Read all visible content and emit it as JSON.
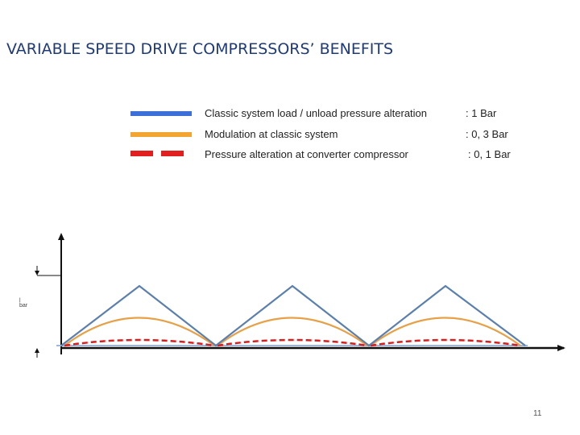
{
  "slide": {
    "title": "VARIABLE SPEED DRIVE COMPRESSORS’ BENEFITS",
    "page_number": "11"
  },
  "legend": [
    {
      "label": "Classic system load / unload pressure alteration",
      "value": ": 1 Bar",
      "color": "#3d6fd9",
      "style": "solid"
    },
    {
      "label": "Modulation at classic system",
      "value": ": 0, 3 Bar",
      "color": "#f2a531",
      "style": "solid"
    },
    {
      "label": "Pressure alteration at converter compressor",
      "value": ": 0, 1 Bar",
      "color": "#e11f1f",
      "style": "dashed"
    }
  ],
  "diagram": {
    "dimension_label_top": "l",
    "dimension_label_bottom": "bar",
    "cycles": 3,
    "colors": {
      "axis": "#111111",
      "triangle": "#5b7fae",
      "orange": "#e8a046",
      "red": "#d81e1e",
      "baseline": "#9fb6d6"
    }
  }
}
